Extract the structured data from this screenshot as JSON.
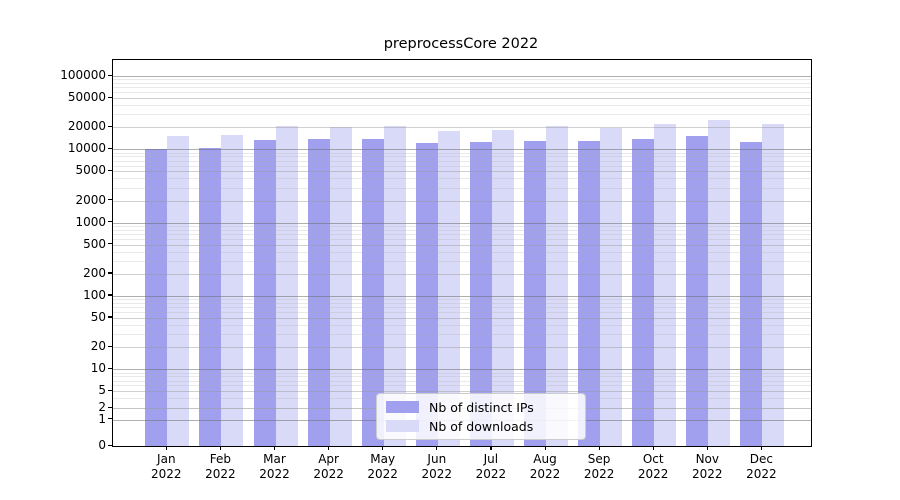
{
  "title": "preprocessCore 2022",
  "colors": {
    "distinct_ips": "#a0a0ef",
    "downloads": "#d9d9f8",
    "axis": "#000000"
  },
  "chart_data": {
    "type": "bar",
    "title": "preprocessCore 2022",
    "xlabel": "",
    "ylabel": "",
    "categories": [
      "Jan 2022",
      "Feb 2022",
      "Mar 2022",
      "Apr 2022",
      "May 2022",
      "Jun 2022",
      "Jul 2022",
      "Aug 2022",
      "Sep 2022",
      "Oct 2022",
      "Nov 2022",
      "Dec 2022"
    ],
    "series": [
      {
        "name": "Nb of distinct IPs",
        "color": "#a0a0ef",
        "values": [
          10000,
          10400,
          13400,
          13900,
          13700,
          12200,
          12500,
          13000,
          12900,
          13900,
          15200,
          12600
        ]
      },
      {
        "name": "Nb of downloads",
        "color": "#d9d9f8",
        "values": [
          15200,
          15700,
          20800,
          20300,
          20600,
          17900,
          18300,
          20600,
          19400,
          21800,
          25100,
          21900
        ]
      }
    ],
    "yscale": "log-like (symlog, linear below 1)",
    "y_ticks": [
      0,
      1,
      2,
      5,
      10,
      20,
      50,
      100,
      200,
      500,
      1000,
      2000,
      5000,
      10000,
      20000,
      50000,
      100000
    ],
    "ylim": [
      0,
      160000
    ],
    "grid": "both (major and minor horizontal gridlines)",
    "legend_position": "lower center"
  }
}
